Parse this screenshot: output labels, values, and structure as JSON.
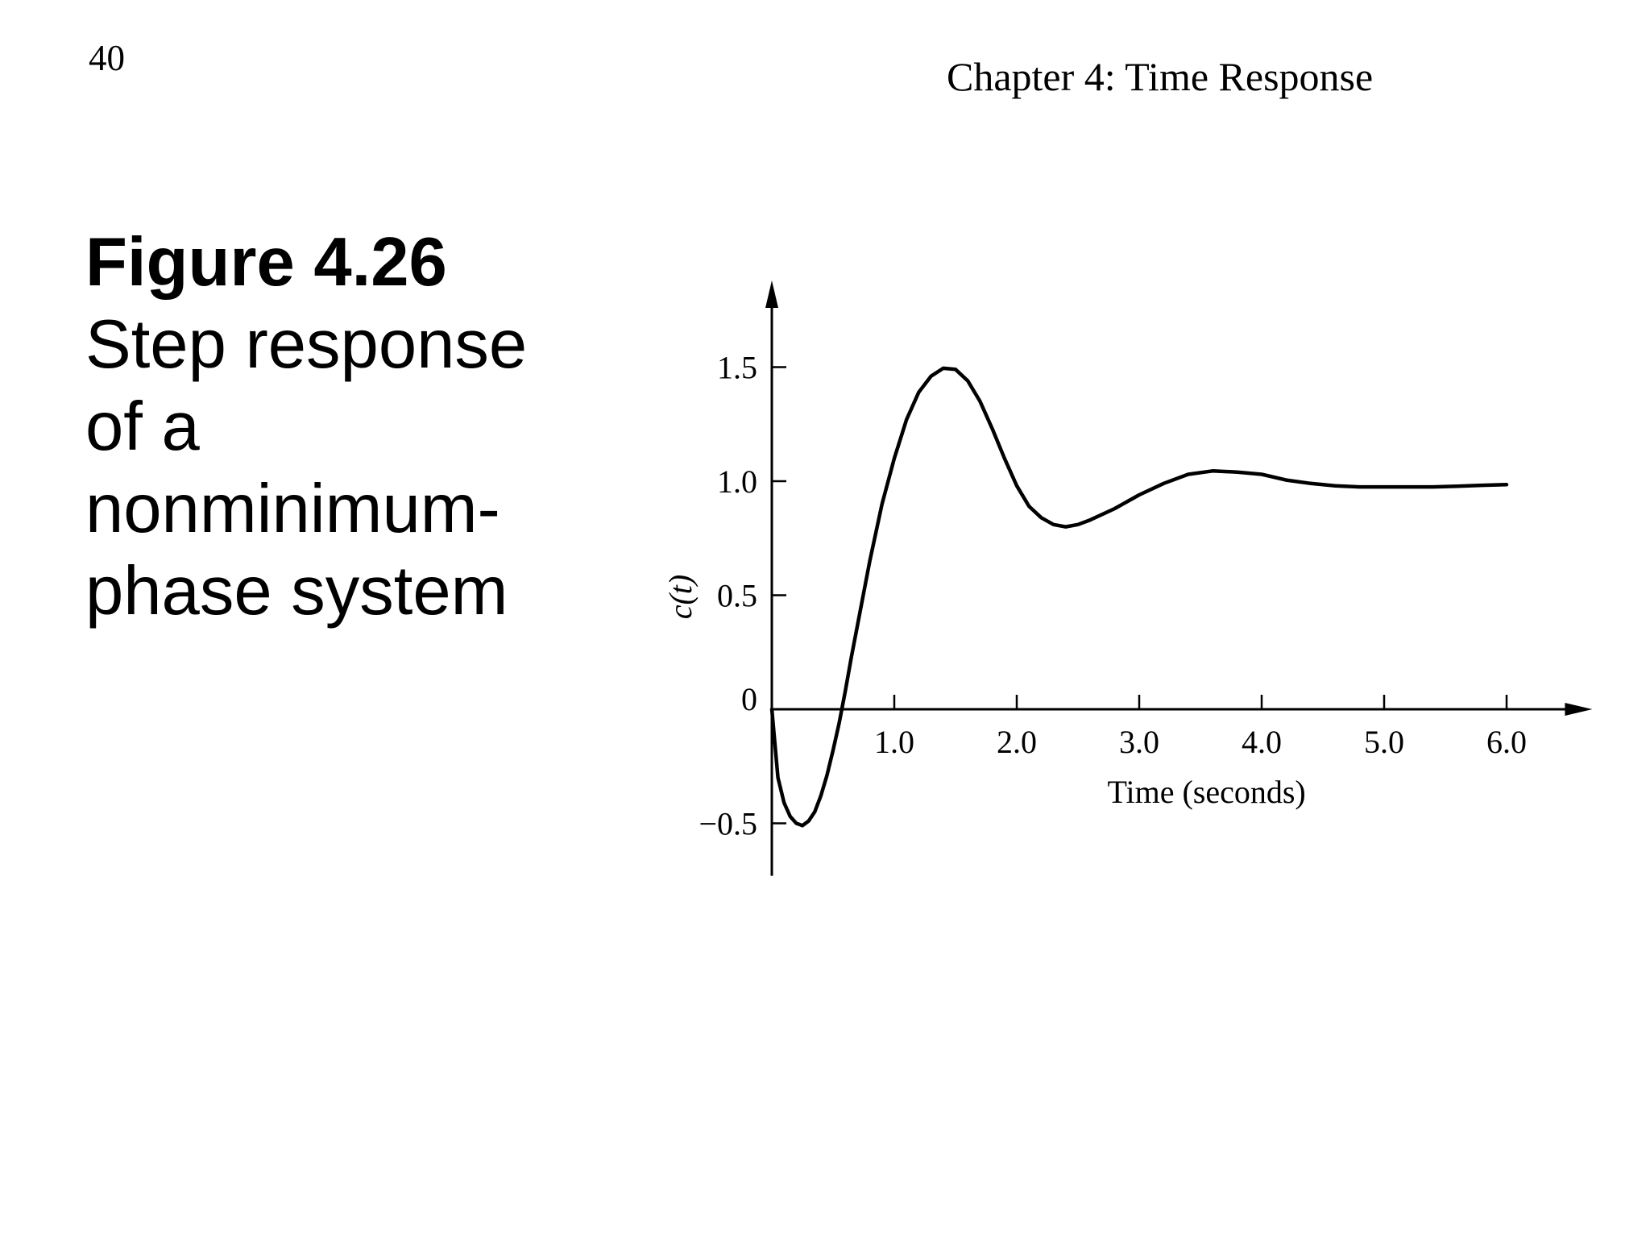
{
  "slide": {
    "page_number": "40",
    "chapter_title": "Chapter 4: Time Response"
  },
  "caption": {
    "figure_number": "Figure 4.26",
    "lines": [
      "Step response",
      "of a",
      "nonminimum-",
      "phase system"
    ]
  },
  "chart_data": {
    "type": "line",
    "title": "",
    "xlabel": "Time (seconds)",
    "ylabel": "c(t)",
    "xlim": [
      0,
      6.7
    ],
    "ylim": [
      -0.73,
      1.88
    ],
    "x_ticks": [
      1.0,
      2.0,
      3.0,
      4.0,
      5.0,
      6.0
    ],
    "x_tick_labels": [
      "1.0",
      "2.0",
      "3.0",
      "4.0",
      "5.0",
      "6.0"
    ],
    "y_ticks": [
      -0.5,
      0,
      0.5,
      1.0,
      1.5
    ],
    "y_tick_labels": [
      "−0.5",
      "0",
      "0.5",
      "1.0",
      "1.5"
    ],
    "grid": false,
    "series": [
      {
        "color": "#000000",
        "x": [
          0,
          0.05,
          0.1,
          0.15,
          0.2,
          0.25,
          0.3,
          0.35,
          0.4,
          0.45,
          0.5,
          0.55,
          0.6,
          0.65,
          0.7,
          0.8,
          0.9,
          1.0,
          1.1,
          1.2,
          1.3,
          1.4,
          1.5,
          1.6,
          1.7,
          1.8,
          1.9,
          2.0,
          2.1,
          2.2,
          2.3,
          2.4,
          2.5,
          2.6,
          2.8,
          3.0,
          3.2,
          3.4,
          3.6,
          3.8,
          4.0,
          4.2,
          4.4,
          4.6,
          4.8,
          5.0,
          5.2,
          5.4,
          5.6,
          5.8,
          6.0
        ],
        "y": [
          0,
          -0.3,
          -0.41,
          -0.47,
          -0.5,
          -0.51,
          -0.49,
          -0.45,
          -0.38,
          -0.29,
          -0.18,
          -0.06,
          0.08,
          0.23,
          0.37,
          0.65,
          0.9,
          1.1,
          1.27,
          1.39,
          1.46,
          1.495,
          1.49,
          1.44,
          1.35,
          1.23,
          1.1,
          0.98,
          0.89,
          0.84,
          0.81,
          0.8,
          0.81,
          0.83,
          0.88,
          0.94,
          0.99,
          1.03,
          1.045,
          1.04,
          1.03,
          1.005,
          0.99,
          0.98,
          0.975,
          0.975,
          0.975,
          0.975,
          0.978,
          0.982,
          0.985
        ]
      }
    ]
  }
}
